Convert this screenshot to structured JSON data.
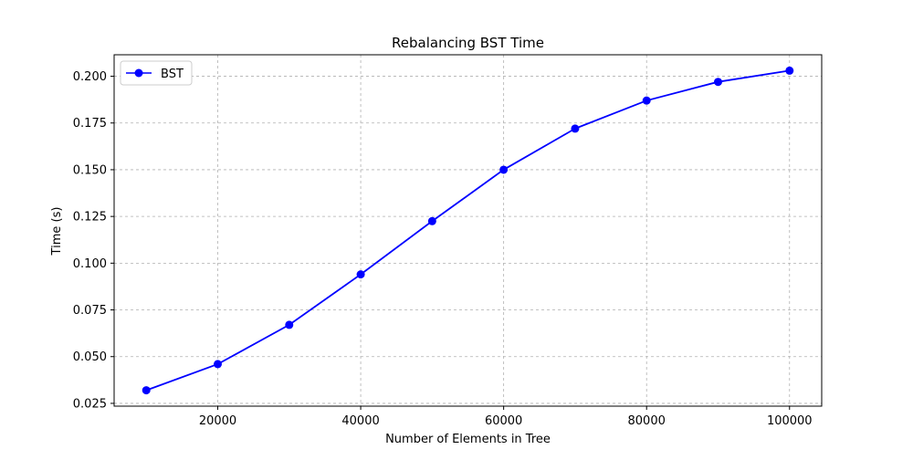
{
  "chart_data": {
    "type": "line",
    "title": "Rebalancing BST Time",
    "xlabel": "Number of Elements in Tree",
    "ylabel": "Time (s)",
    "xlim": [
      5500,
      104500
    ],
    "ylim": [
      0.0235,
      0.2115
    ],
    "xticks": [
      20000,
      40000,
      60000,
      80000,
      100000
    ],
    "xtick_labels": [
      "20000",
      "40000",
      "60000",
      "80000",
      "100000"
    ],
    "yticks": [
      0.025,
      0.05,
      0.075,
      0.1,
      0.125,
      0.15,
      0.175,
      0.2
    ],
    "ytick_labels": [
      "0.025",
      "0.050",
      "0.075",
      "0.100",
      "0.125",
      "0.150",
      "0.175",
      "0.200"
    ],
    "grid": true,
    "legend_position": "upper-left",
    "series": [
      {
        "name": "BST",
        "color": "#0000ff",
        "marker": "circle",
        "x": [
          10000,
          20000,
          30000,
          40000,
          50000,
          60000,
          70000,
          80000,
          90000,
          100000
        ],
        "y": [
          0.032,
          0.046,
          0.067,
          0.094,
          0.1225,
          0.15,
          0.172,
          0.187,
          0.197,
          0.203
        ]
      }
    ]
  }
}
